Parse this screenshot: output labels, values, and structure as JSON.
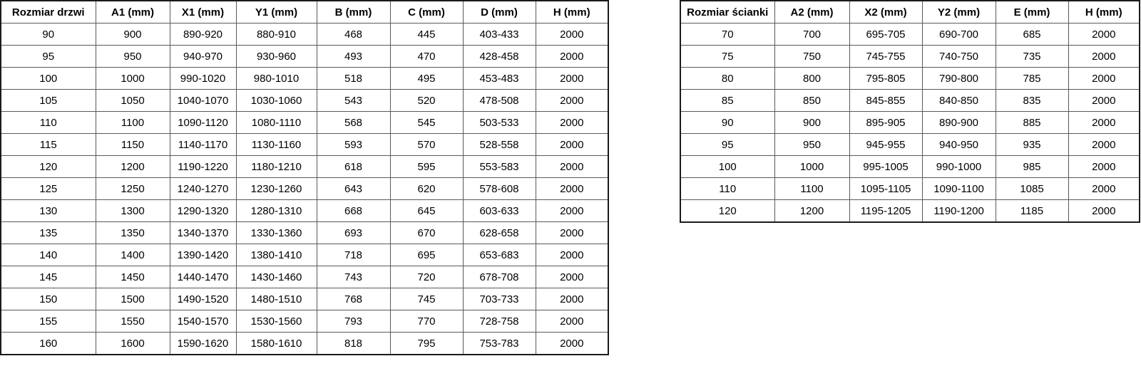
{
  "colors": {
    "background": "#ffffff",
    "text": "#000000",
    "border_inner": "#595959",
    "border_outer": "#1a1a1a"
  },
  "tables": {
    "doors": {
      "headers": [
        "Rozmiar drzwi",
        "A1 (mm)",
        "X1 (mm)",
        "Y1 (mm)",
        "B (mm)",
        "C (mm)",
        "D (mm)",
        "H (mm)"
      ],
      "rows": [
        [
          "90",
          "900",
          "890-920",
          "880-910",
          "468",
          "445",
          "403-433",
          "2000"
        ],
        [
          "95",
          "950",
          "940-970",
          "930-960",
          "493",
          "470",
          "428-458",
          "2000"
        ],
        [
          "100",
          "1000",
          "990-1020",
          "980-1010",
          "518",
          "495",
          "453-483",
          "2000"
        ],
        [
          "105",
          "1050",
          "1040-1070",
          "1030-1060",
          "543",
          "520",
          "478-508",
          "2000"
        ],
        [
          "110",
          "1100",
          "1090-1120",
          "1080-1110",
          "568",
          "545",
          "503-533",
          "2000"
        ],
        [
          "115",
          "1150",
          "1140-1170",
          "1130-1160",
          "593",
          "570",
          "528-558",
          "2000"
        ],
        [
          "120",
          "1200",
          "1190-1220",
          "1180-1210",
          "618",
          "595",
          "553-583",
          "2000"
        ],
        [
          "125",
          "1250",
          "1240-1270",
          "1230-1260",
          "643",
          "620",
          "578-608",
          "2000"
        ],
        [
          "130",
          "1300",
          "1290-1320",
          "1280-1310",
          "668",
          "645",
          "603-633",
          "2000"
        ],
        [
          "135",
          "1350",
          "1340-1370",
          "1330-1360",
          "693",
          "670",
          "628-658",
          "2000"
        ],
        [
          "140",
          "1400",
          "1390-1420",
          "1380-1410",
          "718",
          "695",
          "653-683",
          "2000"
        ],
        [
          "145",
          "1450",
          "1440-1470",
          "1430-1460",
          "743",
          "720",
          "678-708",
          "2000"
        ],
        [
          "150",
          "1500",
          "1490-1520",
          "1480-1510",
          "768",
          "745",
          "703-733",
          "2000"
        ],
        [
          "155",
          "1550",
          "1540-1570",
          "1530-1560",
          "793",
          "770",
          "728-758",
          "2000"
        ],
        [
          "160",
          "1600",
          "1590-1620",
          "1580-1610",
          "818",
          "795",
          "753-783",
          "2000"
        ]
      ]
    },
    "walls": {
      "headers": [
        "Rozmiar ścianki",
        "A2 (mm)",
        "X2 (mm)",
        "Y2 (mm)",
        "E (mm)",
        "H (mm)"
      ],
      "rows": [
        [
          "70",
          "700",
          "695-705",
          "690-700",
          "685",
          "2000"
        ],
        [
          "75",
          "750",
          "745-755",
          "740-750",
          "735",
          "2000"
        ],
        [
          "80",
          "800",
          "795-805",
          "790-800",
          "785",
          "2000"
        ],
        [
          "85",
          "850",
          "845-855",
          "840-850",
          "835",
          "2000"
        ],
        [
          "90",
          "900",
          "895-905",
          "890-900",
          "885",
          "2000"
        ],
        [
          "95",
          "950",
          "945-955",
          "940-950",
          "935",
          "2000"
        ],
        [
          "100",
          "1000",
          "995-1005",
          "990-1000",
          "985",
          "2000"
        ],
        [
          "110",
          "1100",
          "1095-1105",
          "1090-1100",
          "1085",
          "2000"
        ],
        [
          "120",
          "1200",
          "1195-1205",
          "1190-1200",
          "1185",
          "2000"
        ]
      ]
    }
  }
}
